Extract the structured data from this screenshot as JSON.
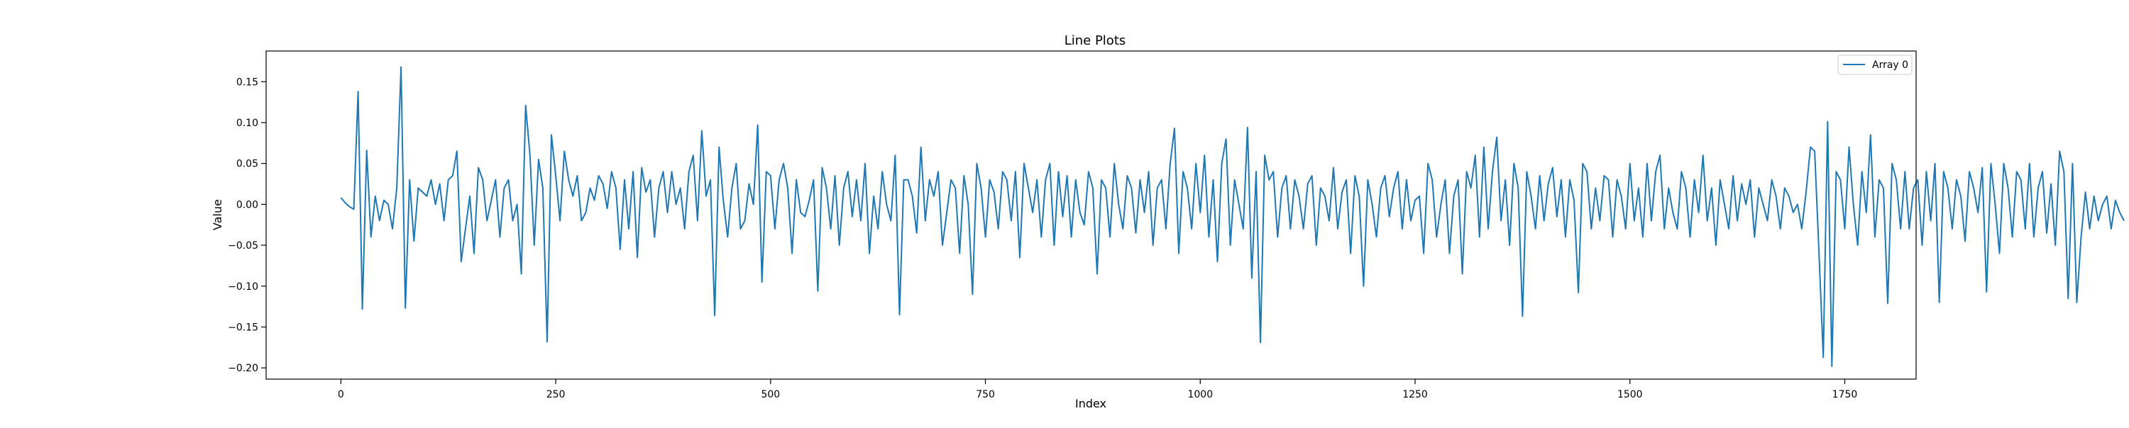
{
  "chart_data": {
    "type": "line",
    "title": "Line Plots",
    "xlabel": "Index",
    "ylabel": "Value",
    "xlim": [
      -87,
      1833
    ],
    "ylim": [
      -0.2137,
      0.1875
    ],
    "xticks": [
      0,
      250,
      500,
      750,
      1000,
      1250,
      1500,
      1750
    ],
    "yticks": [
      -0.2,
      -0.15,
      -0.1,
      -0.05,
      0.0,
      0.05,
      0.1,
      0.15
    ],
    "ytick_labels": [
      "−0.20",
      "−0.15",
      "−0.10",
      "−0.05",
      "0.00",
      "0.05",
      "0.10",
      "0.15"
    ],
    "grid": false,
    "legend": {
      "position": "upper right",
      "entries": [
        "Array 0"
      ]
    },
    "series": [
      {
        "name": "Array 0",
        "color": "#1f77b4",
        "x_start": 0,
        "x_step": 5,
        "values": [
          0.008,
          0.002,
          -0.003,
          -0.006,
          0.138,
          -0.128,
          0.066,
          -0.04,
          0.01,
          -0.02,
          0.005,
          0.0,
          -0.03,
          0.02,
          0.168,
          -0.127,
          0.03,
          -0.045,
          0.02,
          0.015,
          0.01,
          0.03,
          0.0,
          0.025,
          -0.02,
          0.03,
          0.035,
          0.065,
          -0.07,
          -0.03,
          0.01,
          -0.06,
          0.045,
          0.03,
          -0.02,
          0.005,
          0.03,
          -0.04,
          0.02,
          0.03,
          -0.02,
          0.0,
          -0.085,
          0.121,
          0.06,
          -0.05,
          0.055,
          0.02,
          -0.168,
          0.085,
          0.035,
          -0.02,
          0.065,
          0.03,
          0.01,
          0.035,
          -0.02,
          -0.01,
          0.02,
          0.005,
          0.035,
          0.025,
          -0.005,
          0.04,
          0.02,
          -0.055,
          0.03,
          -0.03,
          0.04,
          -0.065,
          0.045,
          0.015,
          0.03,
          -0.04,
          0.02,
          0.04,
          -0.01,
          0.04,
          0.0,
          0.02,
          -0.03,
          0.04,
          0.06,
          -0.02,
          0.09,
          0.01,
          0.03,
          -0.136,
          0.07,
          0.005,
          -0.04,
          0.02,
          0.05,
          -0.03,
          -0.02,
          0.025,
          0.0,
          0.097,
          -0.095,
          0.04,
          0.035,
          -0.03,
          0.03,
          0.05,
          0.02,
          -0.06,
          0.03,
          -0.01,
          -0.015,
          0.005,
          0.03,
          -0.106,
          0.045,
          0.02,
          -0.03,
          0.035,
          -0.05,
          0.02,
          0.04,
          -0.015,
          0.03,
          -0.02,
          0.05,
          -0.06,
          0.01,
          -0.03,
          0.04,
          0.0,
          -0.02,
          0.06,
          -0.135,
          0.03,
          0.03,
          0.01,
          -0.035,
          0.07,
          -0.02,
          0.03,
          0.01,
          0.04,
          -0.05,
          -0.01,
          0.03,
          0.02,
          -0.06,
          0.035,
          0.0,
          -0.11,
          0.05,
          0.02,
          -0.04,
          0.03,
          0.015,
          -0.03,
          0.04,
          0.03,
          -0.02,
          0.04,
          -0.065,
          0.05,
          0.02,
          -0.01,
          0.03,
          -0.04,
          0.03,
          0.05,
          -0.05,
          0.04,
          -0.015,
          0.035,
          -0.04,
          0.03,
          -0.01,
          -0.025,
          0.04,
          0.02,
          -0.085,
          0.03,
          0.02,
          -0.04,
          0.05,
          0.0,
          -0.03,
          0.035,
          0.02,
          -0.035,
          0.03,
          -0.01,
          0.04,
          -0.05,
          0.02,
          0.03,
          -0.03,
          0.05,
          0.093,
          -0.06,
          0.04,
          0.02,
          -0.03,
          0.05,
          -0.01,
          0.06,
          -0.04,
          0.03,
          -0.07,
          0.05,
          0.08,
          -0.05,
          0.03,
          0.0,
          -0.03,
          0.094,
          -0.09,
          0.04,
          -0.169,
          0.06,
          0.03,
          0.04,
          -0.04,
          0.02,
          0.035,
          -0.03,
          0.03,
          0.01,
          -0.03,
          0.025,
          0.035,
          -0.05,
          0.02,
          0.01,
          -0.02,
          0.045,
          -0.03,
          0.015,
          0.03,
          -0.06,
          0.035,
          0.01,
          -0.1,
          0.03,
          0.0,
          -0.04,
          0.02,
          0.035,
          -0.015,
          0.02,
          0.04,
          -0.03,
          0.03,
          -0.02,
          0.005,
          0.01,
          -0.06,
          0.05,
          0.03,
          -0.04,
          0.0,
          0.03,
          -0.06,
          0.01,
          0.03,
          -0.085,
          0.04,
          0.02,
          0.06,
          -0.04,
          0.07,
          -0.03,
          0.04,
          0.082,
          -0.02,
          0.03,
          -0.05,
          0.05,
          0.02,
          -0.137,
          0.04,
          0.01,
          -0.03,
          0.035,
          -0.02,
          0.025,
          0.045,
          -0.015,
          0.03,
          -0.04,
          0.03,
          0.005,
          -0.108,
          0.05,
          0.04,
          -0.03,
          0.02,
          -0.02,
          0.035,
          0.03,
          -0.04,
          0.03,
          0.01,
          -0.03,
          0.05,
          -0.02,
          0.02,
          -0.04,
          0.05,
          -0.02,
          0.04,
          0.06,
          -0.03,
          0.02,
          -0.01,
          -0.03,
          0.04,
          0.02,
          -0.04,
          0.03,
          -0.01,
          0.06,
          -0.02,
          0.02,
          -0.05,
          0.03,
          0.0,
          -0.03,
          0.035,
          -0.02,
          0.025,
          0.0,
          0.03,
          -0.04,
          0.02,
          0.0,
          -0.02,
          0.03,
          0.01,
          -0.03,
          0.02,
          0.01,
          -0.01,
          0.0,
          -0.03,
          0.015,
          0.07,
          0.065,
          -0.06,
          -0.187,
          0.101,
          -0.198,
          0.04,
          0.03,
          -0.03,
          0.07,
          0.0,
          -0.05,
          0.04,
          -0.01,
          0.085,
          -0.04,
          0.03,
          0.02,
          -0.121,
          0.05,
          0.03,
          -0.03,
          0.04,
          -0.03,
          0.02,
          0.03,
          -0.05,
          0.04,
          -0.02,
          0.05,
          -0.12,
          0.04,
          0.02,
          -0.03,
          0.03,
          0.01,
          -0.045,
          0.04,
          0.02,
          -0.01,
          0.045,
          -0.107,
          0.05,
          0.0,
          -0.06,
          0.05,
          0.02,
          -0.04,
          0.04,
          0.03,
          -0.03,
          0.05,
          -0.04,
          0.02,
          0.04,
          -0.035,
          0.025,
          -0.05,
          0.065,
          0.04,
          -0.115,
          0.05,
          -0.12,
          -0.04,
          0.015,
          -0.03,
          0.01,
          -0.02,
          0.0,
          0.01,
          -0.03,
          0.005,
          -0.01,
          -0.02
        ]
      }
    ]
  }
}
